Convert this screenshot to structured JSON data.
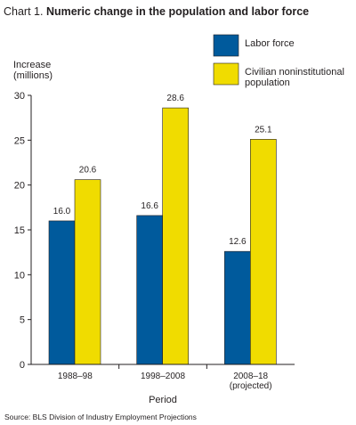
{
  "header": {
    "chart_label": "Chart 1.",
    "title": "Numeric change in the population and labor force"
  },
  "source": "Source: BLS Division of Industry Employment Projections",
  "colors": {
    "labor_force": "#005a9c",
    "population": "#f0dc00",
    "axis": "#231f20"
  },
  "chart_data": {
    "type": "bar",
    "title": "Numeric change in the population and labor force",
    "ylabel": [
      "Increase",
      "(millions)"
    ],
    "xlabel": "Period",
    "ylim": [
      0,
      30
    ],
    "yticks": [
      0,
      5,
      10,
      15,
      20,
      25,
      30
    ],
    "categories": [
      [
        "1988–98"
      ],
      [
        "1998–2008"
      ],
      [
        "2008–18",
        "(projected)"
      ]
    ],
    "legend_position": "top-right",
    "grid": false,
    "series": [
      {
        "name": "Labor force",
        "color": "#005a9c",
        "values": [
          16.0,
          16.6,
          12.6
        ],
        "labels": [
          "16.0",
          "16.6",
          "12.6"
        ]
      },
      {
        "name": [
          "Civilian noninstitutional",
          "population"
        ],
        "color": "#f0dc00",
        "values": [
          20.6,
          28.6,
          25.1
        ],
        "labels": [
          "20.6",
          "28.6",
          "25.1"
        ]
      }
    ]
  }
}
